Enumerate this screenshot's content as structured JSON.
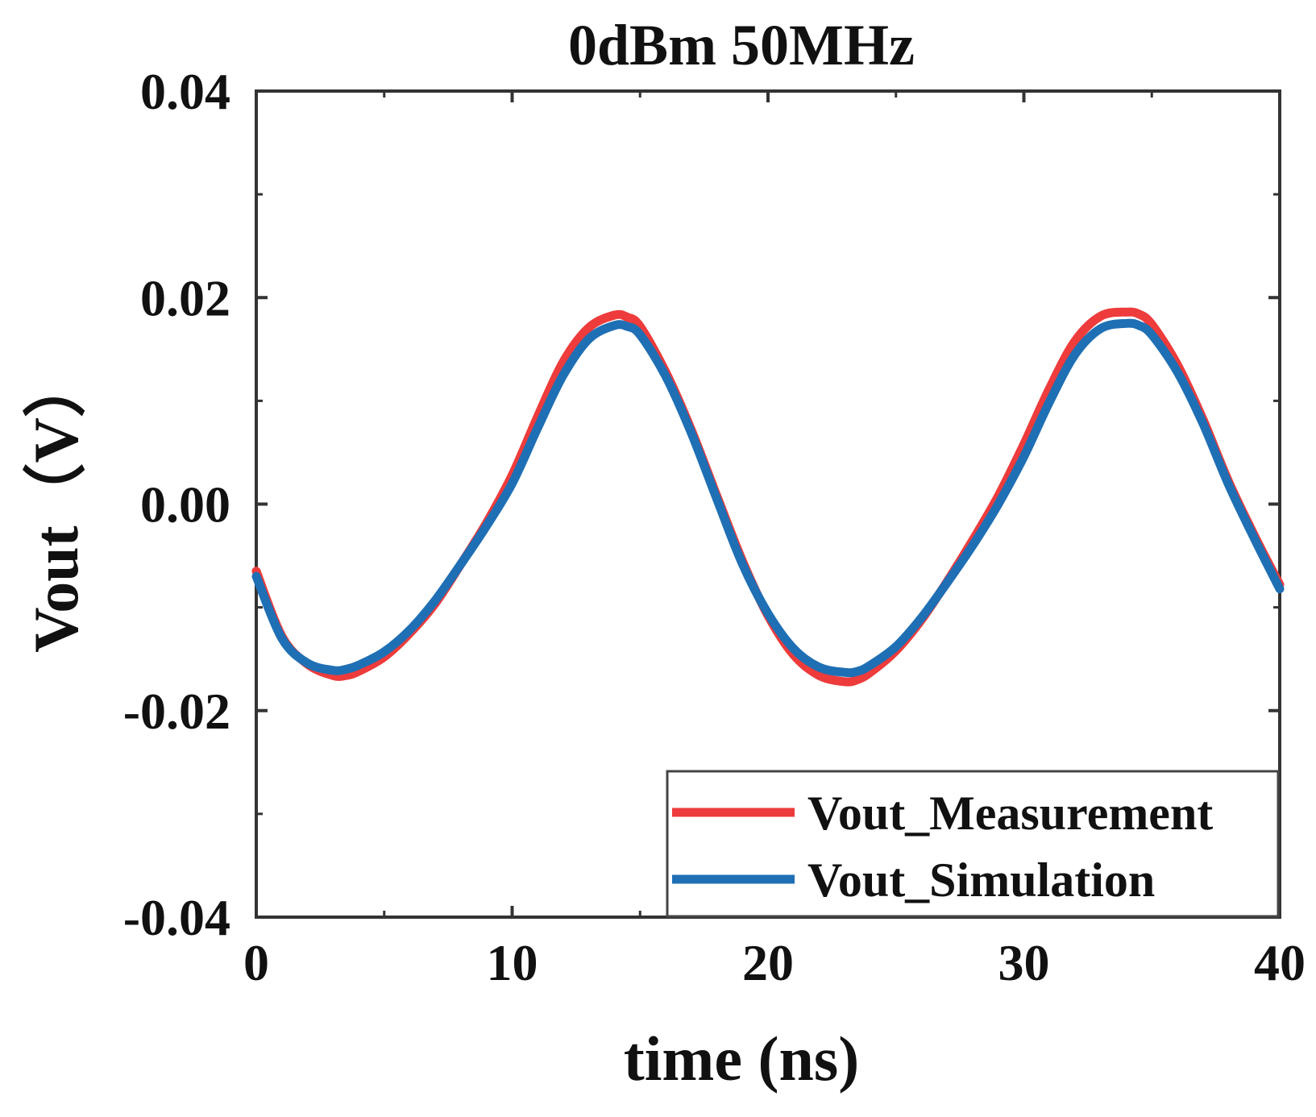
{
  "chart_data": {
    "type": "line",
    "title": "0dBm 50MHz",
    "xlabel": "time (ns)",
    "ylabel": "Vout（V）",
    "xlim": [
      0,
      40
    ],
    "ylim": [
      -0.04,
      0.04
    ],
    "x_ticks": [
      0,
      10,
      20,
      30,
      40
    ],
    "x_tick_labels": [
      "0",
      "10",
      "20",
      "30",
      "40"
    ],
    "y_ticks": [
      -0.04,
      -0.02,
      0.0,
      0.02,
      0.04
    ],
    "y_tick_labels": [
      "-0.04",
      "-0.02",
      "0.00",
      "0.02",
      "0.04"
    ],
    "grid": false,
    "legend_position": "bottom-right",
    "series": [
      {
        "name": "Vout_Measurement",
        "color": "#ee3b3b",
        "x": [
          0,
          1,
          2,
          3,
          3.5,
          4,
          5,
          6,
          7,
          8,
          9,
          10,
          11,
          12,
          13,
          14,
          14.5,
          15,
          16,
          17,
          18,
          19,
          20,
          21,
          22,
          23,
          23.5,
          24,
          25,
          26,
          27,
          28,
          29,
          30,
          31,
          32,
          33,
          34,
          34.5,
          35,
          36,
          37,
          38,
          39,
          40
        ],
        "y": [
          -0.0065,
          -0.0128,
          -0.0155,
          -0.0166,
          -0.0166,
          -0.0162,
          -0.0148,
          -0.0125,
          -0.0096,
          -0.0058,
          -0.0018,
          0.0028,
          0.0085,
          0.0138,
          0.0171,
          0.0183,
          0.0181,
          0.0172,
          0.0128,
          0.0072,
          0.0008,
          -0.0055,
          -0.0108,
          -0.0146,
          -0.0166,
          -0.0172,
          -0.017,
          -0.0163,
          -0.0142,
          -0.0112,
          -0.0075,
          -0.0035,
          0.0008,
          0.0058,
          0.0112,
          0.0158,
          0.0182,
          0.0186,
          0.0184,
          0.0174,
          0.0135,
          0.0082,
          0.0022,
          -0.003,
          -0.0078
        ]
      },
      {
        "name": "Vout_Simulation",
        "color": "#1f6fb4",
        "x": [
          0,
          1,
          2,
          3,
          3.5,
          4,
          5,
          6,
          7,
          8,
          9,
          10,
          11,
          12,
          13,
          14,
          14.5,
          15,
          16,
          17,
          18,
          19,
          20,
          21,
          22,
          23,
          23.5,
          24,
          25,
          26,
          27,
          28,
          29,
          30,
          31,
          32,
          33,
          34,
          34.5,
          35,
          36,
          37,
          38,
          39,
          40
        ],
        "y": [
          -0.007,
          -0.013,
          -0.0154,
          -0.0161,
          -0.016,
          -0.0156,
          -0.0143,
          -0.0122,
          -0.0093,
          -0.0058,
          -0.0021,
          0.002,
          0.0074,
          0.0125,
          0.016,
          0.0173,
          0.0172,
          0.0164,
          0.0124,
          0.0069,
          0.0005,
          -0.0058,
          -0.0106,
          -0.014,
          -0.0158,
          -0.0163,
          -0.0162,
          -0.0156,
          -0.0138,
          -0.011,
          -0.0076,
          -0.004,
          0.0,
          0.0046,
          0.0099,
          0.0145,
          0.017,
          0.0175,
          0.0173,
          0.0164,
          0.0128,
          0.0078,
          0.0019,
          -0.0033,
          -0.0082
        ]
      }
    ]
  }
}
